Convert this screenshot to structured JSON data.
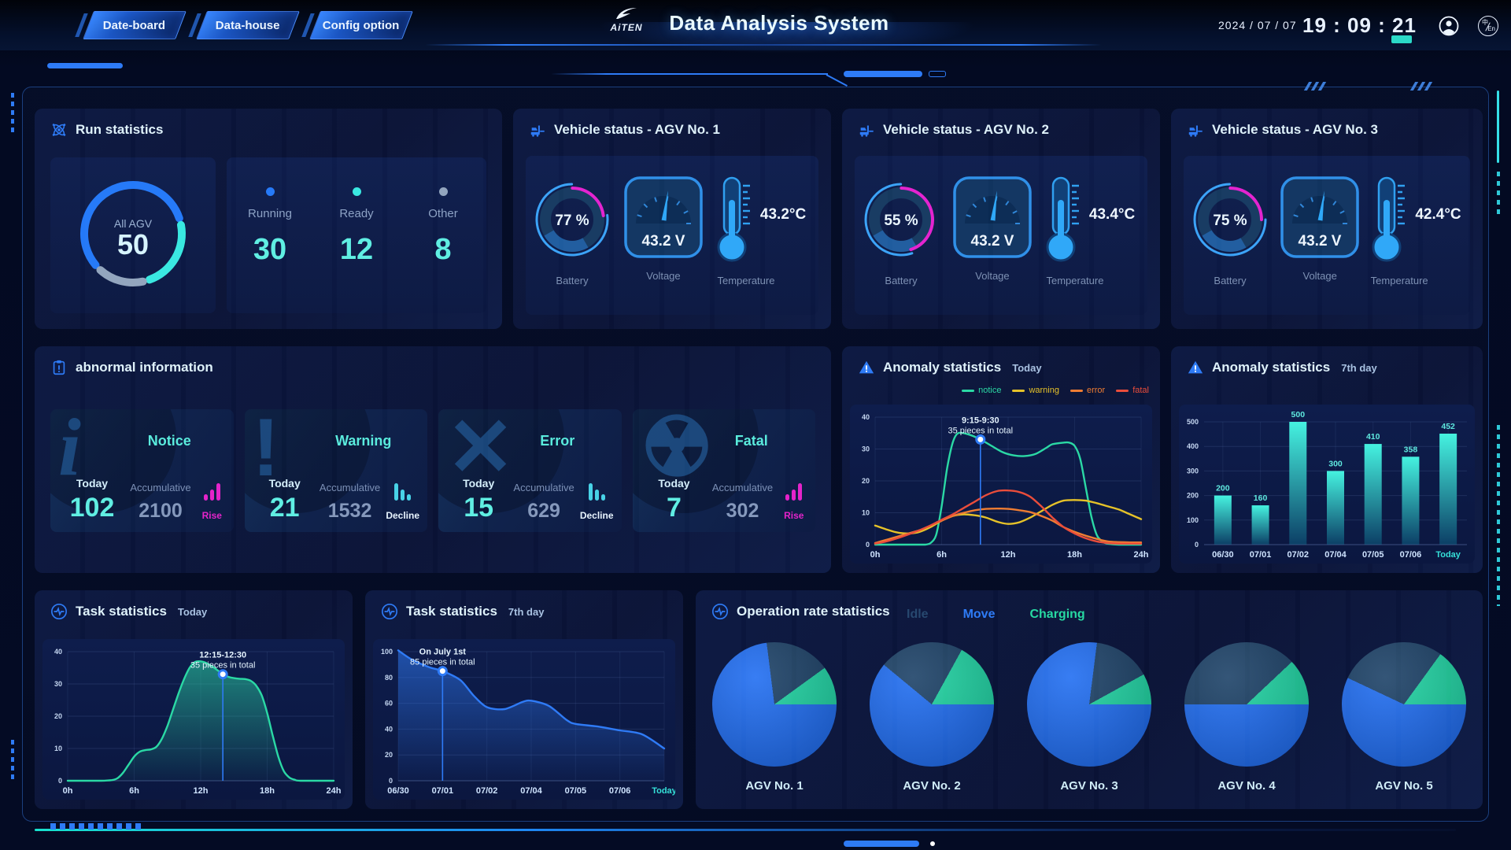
{
  "header": {
    "tabs": [
      {
        "label": "Date-board"
      },
      {
        "label": "Data-house"
      },
      {
        "label": "Config option"
      }
    ],
    "logo": "AiTEN",
    "title": "Data Analysis System",
    "date": "2024 / 07 / 07",
    "time": "19 : 09 : 21",
    "lang": {
      "top": "中",
      "bottom": "En"
    }
  },
  "run_stats": {
    "title": "Run statistics",
    "gauge_label": "All AGV",
    "total": "50",
    "segments": [
      {
        "label": "Running",
        "value": "30",
        "num": 30,
        "color": "#2479f8"
      },
      {
        "label": "Ready",
        "value": "12",
        "num": 12,
        "color": "#38e9e0"
      },
      {
        "label": "Other",
        "value": "8",
        "num": 8,
        "color": "#93a5bd"
      }
    ]
  },
  "vehicles": [
    {
      "title": "Vehicle status - AGV No. 1",
      "battery": "77 %",
      "battery_pct": 77,
      "voltage": "43.2 V",
      "temperature": "43.2°C",
      "labels": {
        "battery": "Battery",
        "voltage": "Voltage",
        "temperature": "Temperature"
      }
    },
    {
      "title": "Vehicle status - AGV No. 2",
      "battery": "55 %",
      "battery_pct": 55,
      "voltage": "43.2 V",
      "temperature": "43.4°C",
      "labels": {
        "battery": "Battery",
        "voltage": "Voltage",
        "temperature": "Temperature"
      }
    },
    {
      "title": "Vehicle status - AGV No. 3",
      "battery": "75 %",
      "battery_pct": 75,
      "voltage": "43.2 V",
      "temperature": "42.4°C",
      "labels": {
        "battery": "Battery",
        "voltage": "Voltage",
        "temperature": "Temperature"
      }
    }
  ],
  "abnormal": {
    "title": "abnormal information",
    "cards": [
      {
        "type": "Notice",
        "glyph": "i",
        "today_label": "Today",
        "today": "102",
        "acc_label": "Accumulative",
        "acc": "2100",
        "trend": "Rise",
        "trend_dir": "up"
      },
      {
        "type": "Warning",
        "glyph": "!",
        "today_label": "Today",
        "today": "21",
        "acc_label": "Accumulative",
        "acc": "1532",
        "trend": "Decline",
        "trend_dir": "down"
      },
      {
        "type": "Error",
        "glyph": "✕",
        "today_label": "Today",
        "today": "15",
        "acc_label": "Accumulative",
        "acc": "629",
        "trend": "Decline",
        "trend_dir": "down"
      },
      {
        "type": "Fatal",
        "glyph": "☢",
        "today_label": "Today",
        "today": "7",
        "acc_label": "Accumulative",
        "acc": "302",
        "trend": "Rise",
        "trend_dir": "up"
      }
    ]
  },
  "chart_data": [
    {
      "id": "anomaly_today",
      "type": "line",
      "title": "Anomaly statistics",
      "subtitle": "Today",
      "xmin": 0,
      "xmax": 24,
      "ylim": [
        0,
        40
      ],
      "y_ticks": [
        0,
        10,
        20,
        30,
        40
      ],
      "x_ticks": [
        {
          "pos": 0,
          "label": "0h"
        },
        {
          "pos": 6,
          "label": "6h"
        },
        {
          "pos": 12,
          "label": "12h"
        },
        {
          "pos": 18,
          "label": "18h"
        },
        {
          "pos": 24,
          "label": "24h"
        }
      ],
      "grid": true,
      "legend_position": "top-right",
      "annotation": {
        "line1": "9:15-9:30",
        "line2": "35 pieces in total",
        "x": 9.5,
        "y": 33
      },
      "series": [
        {
          "name": "notice",
          "color": "#2bd9a5",
          "x": [
            0,
            2,
            3.5,
            4.5,
            5,
            5.5,
            6,
            6.5,
            7,
            7.5,
            8.5,
            9.5,
            10.5,
            11.5,
            12.5,
            13.5,
            14.5,
            15.5,
            16,
            17,
            17.5,
            18,
            18.5,
            19,
            19.5,
            20,
            20.5,
            21,
            22,
            24
          ],
          "values": [
            0,
            0,
            0,
            0,
            0.5,
            3,
            12,
            24,
            32,
            35,
            34.5,
            33,
            31,
            29,
            28,
            27.8,
            28.5,
            30.5,
            31.5,
            32,
            32,
            31,
            27,
            18,
            9,
            3,
            1,
            0.3,
            0,
            0
          ]
        },
        {
          "name": "warning",
          "color": "#e6c229",
          "x": [
            0,
            1,
            2,
            3,
            4,
            5,
            6,
            7,
            8,
            9,
            10,
            11,
            12,
            13,
            14,
            15,
            16,
            17,
            18,
            19,
            20,
            21,
            22,
            23,
            24
          ],
          "values": [
            6,
            4.8,
            3.8,
            3.5,
            4,
            5.5,
            7.5,
            9,
            9.5,
            9.2,
            8.5,
            7.2,
            6.5,
            7,
            8.5,
            10.5,
            12.5,
            13.8,
            14,
            13.8,
            13,
            12,
            11,
            9.5,
            8
          ]
        },
        {
          "name": "error",
          "color": "#ef7d33",
          "x": [
            0,
            1,
            2,
            3,
            4,
            5,
            6,
            7,
            8,
            9,
            10,
            11,
            12,
            13,
            14,
            15,
            16,
            17,
            18,
            19,
            20,
            21,
            22,
            23,
            24
          ],
          "values": [
            0.5,
            1.5,
            2.5,
            3.5,
            4.5,
            6,
            7.5,
            9,
            10,
            10.8,
            11.2,
            11.3,
            11.2,
            10.8,
            10.2,
            9,
            7.5,
            5.5,
            4,
            2.8,
            1.8,
            1,
            0.8,
            0.7,
            0.7
          ]
        },
        {
          "name": "fatal",
          "color": "#ea4d3b",
          "x": [
            0,
            1,
            2,
            3,
            4,
            5,
            6,
            7,
            8,
            9,
            10,
            11,
            12,
            13,
            14,
            15,
            16,
            17,
            18,
            19,
            20,
            21,
            22,
            23,
            24
          ],
          "values": [
            0.3,
            1,
            2,
            3.2,
            4.5,
            6,
            7.8,
            9.5,
            11.5,
            13.5,
            15.5,
            16.8,
            17,
            16.5,
            15,
            12,
            8.5,
            5.5,
            3.5,
            2,
            1,
            0.5,
            0.3,
            0.3,
            0.3
          ]
        }
      ]
    },
    {
      "id": "anomaly_7day",
      "type": "bar",
      "title": "Anomaly statistics",
      "subtitle": "7th day",
      "categories": [
        "06/30",
        "07/01",
        "07/02",
        "07/04",
        "07/05",
        "07/06",
        "Today"
      ],
      "values": [
        200,
        160,
        500,
        300,
        410,
        358,
        452
      ],
      "ylim": [
        0,
        500
      ],
      "y_ticks": [
        0,
        100,
        200,
        300,
        400,
        500
      ],
      "grid": true,
      "bar_color_top": "#45f2e0",
      "bar_color_bottom": "#0c3f66",
      "label_color": "#5fe9df"
    },
    {
      "id": "task_today",
      "type": "area",
      "title": "Task statistics",
      "subtitle": "Today",
      "xmin": 0,
      "xmax": 24,
      "ylim": [
        0,
        40
      ],
      "y_ticks": [
        0,
        10,
        20,
        30,
        40
      ],
      "x_ticks": [
        {
          "pos": 0,
          "label": "0h"
        },
        {
          "pos": 6,
          "label": "6h"
        },
        {
          "pos": 12,
          "label": "12h"
        },
        {
          "pos": 18,
          "label": "18h"
        },
        {
          "pos": 24,
          "label": "24h"
        }
      ],
      "grid": true,
      "annotation": {
        "line1": "12:15-12:30",
        "line2": "35 pieces in total",
        "x": 14,
        "y": 33
      },
      "series": [
        {
          "name": "tasks",
          "color": "#2bd9a5",
          "x": [
            0,
            3,
            4,
            4.5,
            5,
            5.5,
            6,
            6.5,
            7,
            7.5,
            8,
            8.5,
            9,
            9.5,
            10,
            10.5,
            11,
            11.5,
            12,
            12.5,
            13,
            13.5,
            14,
            14.5,
            15,
            15.5,
            16,
            16.5,
            17,
            17.5,
            18,
            18.5,
            19,
            19.5,
            20,
            20.5,
            21,
            24
          ],
          "values": [
            0,
            0,
            0.2,
            0.8,
            2.5,
            5,
            7.5,
            9,
            9.5,
            9.7,
            10.5,
            13,
            17,
            22,
            27,
            31.5,
            35,
            36.8,
            37,
            36.5,
            35.5,
            34.3,
            33,
            32.2,
            31.8,
            31.6,
            31.5,
            31,
            29.5,
            26.5,
            21,
            14,
            7.5,
            3,
            1,
            0.3,
            0,
            0
          ]
        }
      ]
    },
    {
      "id": "task_7day",
      "type": "area",
      "title": "Task statistics",
      "subtitle": "7th day",
      "xmin": 0,
      "xmax": 6,
      "ylim": [
        0,
        100
      ],
      "y_ticks": [
        0,
        20,
        40,
        60,
        80,
        100
      ],
      "x_ticks": [
        {
          "pos": 0,
          "label": "06/30"
        },
        {
          "pos": 1,
          "label": "07/01"
        },
        {
          "pos": 2,
          "label": "07/02"
        },
        {
          "pos": 3,
          "label": "07/04"
        },
        {
          "pos": 4,
          "label": "07/05"
        },
        {
          "pos": 5,
          "label": "07/06"
        },
        {
          "pos": 6,
          "label": "Today"
        }
      ],
      "grid": true,
      "annotation": {
        "line1": "On July 1st",
        "line2": "85 pieces in total",
        "x": 1,
        "y": 85
      },
      "series": [
        {
          "name": "tasks",
          "color": "#2f7bf6",
          "x": [
            0,
            0.3,
            0.7,
            1,
            1.4,
            1.7,
            2,
            2.4,
            2.8,
            3,
            3.4,
            3.8,
            4,
            4.5,
            5,
            5.5,
            6
          ],
          "values": [
            101,
            94,
            88,
            85,
            78,
            66,
            57,
            55.5,
            61,
            62,
            58,
            47,
            44,
            42,
            39,
            36,
            25
          ]
        }
      ]
    },
    {
      "id": "operation_rate",
      "type": "pie",
      "title": "Operation rate statistics",
      "legend": [
        {
          "label": "Idle",
          "color": "#1b4065",
          "text_color": "#27486f"
        },
        {
          "label": "Move",
          "color": "#1f6df2",
          "text_color": "#2e7bf6"
        },
        {
          "label": "Charging",
          "color": "#1fd6a3",
          "text_color": "#27d9a2"
        }
      ],
      "pies": [
        {
          "label": "AGV No. 1",
          "idle": 17,
          "move": 73,
          "charging": 10
        },
        {
          "label": "AGV No. 2",
          "idle": 22,
          "move": 61,
          "charging": 17
        },
        {
          "label": "AGV No. 3",
          "idle": 15,
          "move": 77,
          "charging": 8
        },
        {
          "label": "AGV No. 4",
          "idle": 38,
          "move": 50,
          "charging": 12
        },
        {
          "label": "AGV No. 5",
          "idle": 28,
          "move": 57,
          "charging": 15
        }
      ]
    }
  ]
}
